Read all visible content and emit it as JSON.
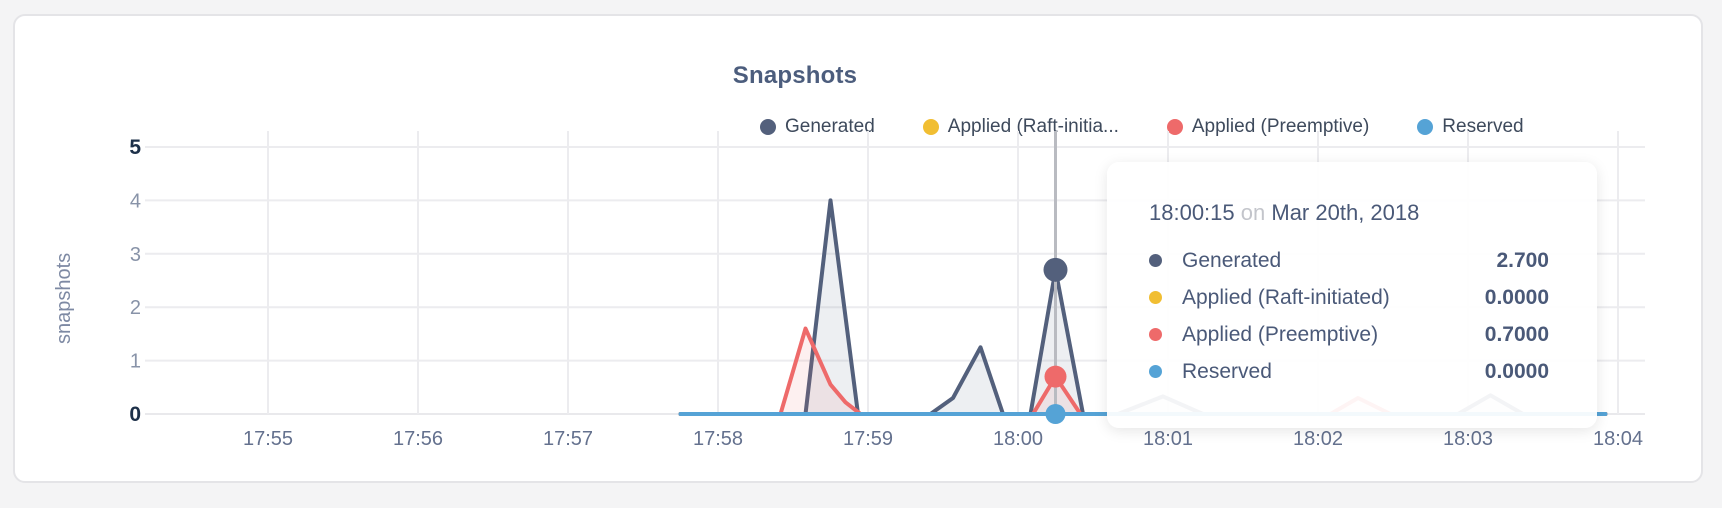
{
  "colors": {
    "generated": "#53607c",
    "raft_initiated": "#f1be32",
    "preemptive": "#ee6a6a",
    "reserved": "#55a3d6",
    "hover_line": "#b9bbc1",
    "card_background": "#ffffff",
    "page_background": "#f4f4f5"
  },
  "legend": {
    "items": [
      {
        "label": "Generated"
      },
      {
        "label": "Applied (Raft-initia..."
      },
      {
        "label": "Applied (Preemptive)"
      },
      {
        "label": "Reserved"
      }
    ]
  },
  "tooltip": {
    "time": "18:00:15",
    "separator": "on",
    "date": "Mar 20th, 2018",
    "rows": [
      {
        "label": "Generated",
        "value": "2.700"
      },
      {
        "label": "Applied (Raft-initiated)",
        "value": "0.0000"
      },
      {
        "label": "Applied (Preemptive)",
        "value": "0.7000"
      },
      {
        "label": "Reserved",
        "value": "0.0000"
      }
    ]
  },
  "chart_data": {
    "type": "area",
    "title": "Snapshots",
    "ylabel": "snapshots",
    "ylim": [
      0,
      5
    ],
    "yticks": [
      0,
      1,
      2,
      3,
      4,
      5
    ],
    "ytick_bold": [
      0,
      5
    ],
    "xticks": [
      "17:55",
      "17:56",
      "17:57",
      "17:58",
      "17:59",
      "18:00",
      "18:01",
      "18:02",
      "18:03",
      "18:04"
    ],
    "grid": true,
    "legend_position": "top-right",
    "series": [
      {
        "name": "Generated",
        "color": "#53607c",
        "fill": "rgba(83,96,124,0.10)",
        "points": [
          [
            "17:57:45",
            0
          ],
          [
            "17:58:35",
            0
          ],
          [
            "17:58:45",
            4.0
          ],
          [
            "17:58:56",
            0
          ],
          [
            "17:59:25",
            0
          ],
          [
            "17:59:34",
            0.3
          ],
          [
            "17:59:45",
            1.25
          ],
          [
            "17:59:54",
            0
          ],
          [
            "18:00:05",
            0
          ],
          [
            "18:00:15",
            2.7
          ],
          [
            "18:00:26",
            0
          ],
          [
            "18:00:40",
            0
          ],
          [
            "18:00:58",
            0.33
          ],
          [
            "18:01:14",
            0
          ],
          [
            "18:02:56",
            0
          ],
          [
            "18:03:09",
            0.35
          ],
          [
            "18:03:22",
            0
          ],
          [
            "18:03:55",
            0
          ]
        ]
      },
      {
        "name": "Applied (Raft-initiated)",
        "color": "#f1be32",
        "fill": null,
        "points": [
          [
            "17:57:45",
            0
          ],
          [
            "18:03:55",
            0
          ]
        ]
      },
      {
        "name": "Applied (Preemptive)",
        "color": "#ee6a6a",
        "fill": "rgba(238,106,106,0.10)",
        "points": [
          [
            "17:57:45",
            0
          ],
          [
            "17:58:25",
            0
          ],
          [
            "17:58:35",
            1.6
          ],
          [
            "17:58:45",
            0.55
          ],
          [
            "17:58:51",
            0.22
          ],
          [
            "17:58:57",
            0
          ],
          [
            "18:00:06",
            0
          ],
          [
            "18:00:15",
            0.7
          ],
          [
            "18:00:25",
            0
          ],
          [
            "18:02:05",
            0
          ],
          [
            "18:02:16",
            0.3
          ],
          [
            "18:02:29",
            0
          ],
          [
            "18:03:55",
            0
          ]
        ]
      },
      {
        "name": "Reserved",
        "color": "#55a3d6",
        "fill": null,
        "points": [
          [
            "17:57:45",
            0
          ],
          [
            "18:03:55",
            0
          ]
        ]
      }
    ],
    "hover": {
      "time": "18:00:15",
      "markers": [
        {
          "series": "Generated",
          "value": 2.7,
          "radius": 12
        },
        {
          "series": "Applied (Preemptive)",
          "value": 0.7,
          "radius": 11
        },
        {
          "series": "Reserved",
          "value": 0,
          "radius": 10
        }
      ]
    }
  }
}
